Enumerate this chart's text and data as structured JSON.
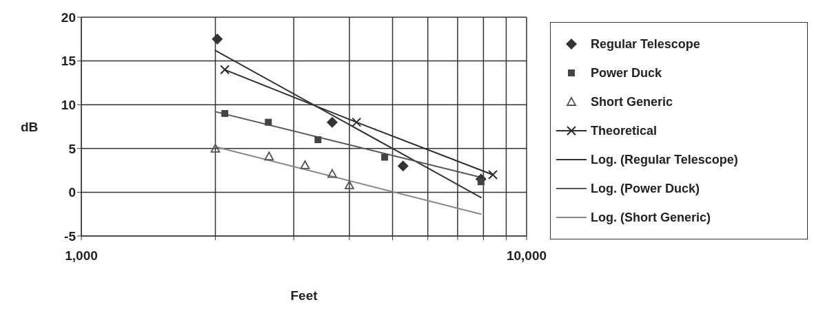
{
  "chart_data": {
    "type": "scatter",
    "xlabel": "Feet",
    "ylabel": "dB",
    "log": "x",
    "grid": true,
    "legend": "right",
    "xlim": [
      1000,
      10000
    ],
    "xticks": [
      {
        "value": 1000,
        "label": "1,000"
      },
      {
        "value": 2000,
        "label": null
      },
      {
        "value": 3000,
        "label": null
      },
      {
        "value": 4000,
        "label": null
      },
      {
        "value": 5000,
        "label": null
      },
      {
        "value": 6000,
        "label": null
      },
      {
        "value": 7000,
        "label": null
      },
      {
        "value": 8000,
        "label": null
      },
      {
        "value": 9000,
        "label": null
      },
      {
        "value": 10000,
        "label": "10,000"
      }
    ],
    "ylim": [
      -5,
      20
    ],
    "yticks": [
      -5,
      0,
      5,
      10,
      15,
      20
    ],
    "series": [
      {
        "name": "Regular Telescope",
        "marker": "diamond",
        "color": "#333333",
        "x": [
          2020,
          3660,
          5280,
          7900
        ],
        "values": [
          17.5,
          8,
          3,
          1.5
        ]
      },
      {
        "name": "Power Duck",
        "marker": "square",
        "color": "#444444",
        "x": [
          2100,
          2630,
          3400,
          4800,
          7900
        ],
        "values": [
          9,
          8,
          6,
          4,
          1.2
        ]
      },
      {
        "name": "Short Generic",
        "marker": "triangle",
        "color": "#555555",
        "x": [
          2000,
          2640,
          3180,
          3660,
          4000
        ],
        "values": [
          5,
          4.1,
          3.1,
          2.1,
          0.8
        ]
      },
      {
        "name": "Theoretical",
        "type": "line",
        "marker": "cross",
        "line_style": "solid",
        "color": "#2a2a2a",
        "x": [
          2100,
          4150,
          8400
        ],
        "values": [
          14,
          8,
          2
        ]
      },
      {
        "name": "Log. (Regular Telescope)",
        "type": "line",
        "marker": "none",
        "line_style": "solid",
        "color": "#333333",
        "x": [
          2000,
          7900
        ],
        "values": [
          16.2,
          -0.6
        ]
      },
      {
        "name": "Log. (Power Duck)",
        "type": "line",
        "marker": "none",
        "line_style": "solid",
        "color": "#555555",
        "x": [
          2000,
          7900
        ],
        "values": [
          9.2,
          1.7
        ]
      },
      {
        "name": "Log. (Short Generic)",
        "type": "line",
        "marker": "none",
        "line_style": "solid",
        "color": "#888888",
        "x": [
          2000,
          7900
        ],
        "values": [
          5.2,
          -2.5
        ]
      }
    ]
  }
}
